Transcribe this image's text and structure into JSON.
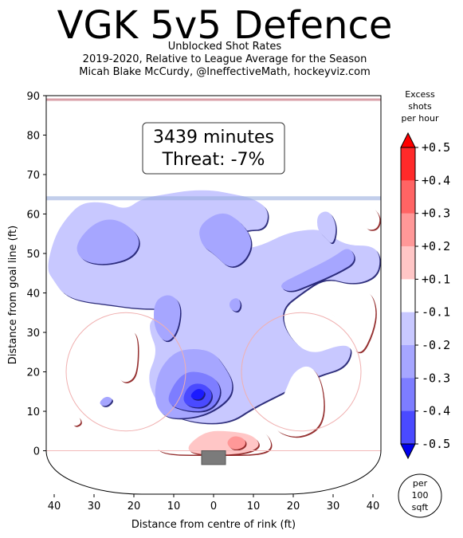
{
  "chart_data": {
    "type": "heatmap",
    "title": "VGK 5v5 Defence",
    "subtitle_lines": [
      "Unblocked Shot Rates",
      "2019-2020, Relative to League Average for the Season",
      "Micah Blake McCurdy, @IneffectiveMath, hockeyviz.com"
    ],
    "xlabel": "Distance from centre of rink (ft)",
    "ylabel": "Distance from goal line (ft)",
    "xlim": [
      -42,
      42
    ],
    "ylim": [
      -11,
      90
    ],
    "x_ticks": [
      -40,
      -30,
      -20,
      -10,
      0,
      10,
      20,
      30,
      40
    ],
    "x_tick_labels": [
      "40",
      "30",
      "20",
      "10",
      "0",
      "10",
      "20",
      "30",
      "40"
    ],
    "y_ticks": [
      0,
      10,
      20,
      30,
      40,
      50,
      60,
      70,
      80,
      90
    ],
    "y_tick_labels": [
      "0",
      "10",
      "20",
      "30",
      "40",
      "50",
      "60",
      "70",
      "80",
      "90"
    ],
    "annotation_lines": [
      "3439 minutes",
      "Threat: -7%"
    ],
    "colorbar": {
      "title_lines": [
        "Excess",
        "shots",
        "per hour"
      ],
      "levels": [
        -0.5,
        -0.4,
        -0.3,
        -0.2,
        -0.1,
        0.1,
        0.2,
        0.3,
        0.4,
        0.5
      ],
      "tick_labels": [
        "-0.5",
        "-0.4",
        "-0.3",
        "-0.2",
        "-0.1",
        "+0.1",
        "+0.2",
        "+0.3",
        "+0.4",
        "+0.5"
      ],
      "colors": [
        "#1b1bff",
        "#4a4aff",
        "#7d7dff",
        "#a6a6ff",
        "#c8c8ff",
        "#ffffff",
        "#ffc6c6",
        "#ff9898",
        "#ff6464",
        "#ff2a2a"
      ],
      "under_color": "#0000ee",
      "over_color": "#ff0000"
    },
    "unit_badge_lines": [
      "per",
      "100",
      "sqft"
    ],
    "regions": [
      {
        "level": -0.1,
        "label": "large defensive zone region",
        "points": [
          [
            -42,
            46
          ],
          [
            -40,
            54
          ],
          [
            -37,
            59
          ],
          [
            -33,
            63
          ],
          [
            -27,
            63
          ],
          [
            -22,
            61
          ],
          [
            -18,
            64
          ],
          [
            -12,
            65
          ],
          [
            -6,
            66
          ],
          [
            0,
            66
          ],
          [
            5,
            65
          ],
          [
            10,
            64
          ],
          [
            14,
            61
          ],
          [
            13,
            56
          ],
          [
            8,
            56
          ],
          [
            5,
            54
          ],
          [
            7,
            51
          ],
          [
            12,
            52
          ],
          [
            18,
            55
          ],
          [
            23,
            56
          ],
          [
            27,
            56
          ],
          [
            30,
            54
          ],
          [
            34,
            52
          ],
          [
            40,
            52
          ],
          [
            42,
            49
          ],
          [
            41,
            44
          ],
          [
            35,
            42
          ],
          [
            28,
            44
          ],
          [
            22,
            40
          ],
          [
            17,
            36
          ],
          [
            18,
            30
          ],
          [
            24,
            24
          ],
          [
            32,
            27
          ],
          [
            35,
            26
          ],
          [
            33,
            21
          ],
          [
            26,
            19
          ],
          [
            18,
            15
          ],
          [
            10,
            11
          ],
          [
            4,
            7
          ],
          [
            -5,
            7
          ],
          [
            -13,
            10
          ],
          [
            -17,
            18
          ],
          [
            -14,
            25
          ],
          [
            -16,
            30
          ],
          [
            -16,
            33
          ],
          [
            -12,
            36
          ],
          [
            -19,
            36
          ],
          [
            -26,
            37
          ],
          [
            -34,
            38
          ],
          [
            -38,
            40
          ],
          [
            -40,
            43
          ]
        ]
      },
      {
        "level": -0.1,
        "label": "right edge region",
        "points": [
          [
            26,
            60
          ],
          [
            29,
            61
          ],
          [
            31,
            57
          ],
          [
            30,
            52
          ],
          [
            28,
            54
          ],
          [
            26,
            56
          ]
        ]
      },
      {
        "level": -0.2,
        "label": "left upper",
        "points": [
          [
            -35,
            52
          ],
          [
            -30,
            58
          ],
          [
            -24,
            59
          ],
          [
            -18,
            54
          ],
          [
            -20,
            49
          ],
          [
            -27,
            47
          ],
          [
            -33,
            48
          ]
        ]
      },
      {
        "level": -0.2,
        "label": "centre mid",
        "points": [
          [
            -4,
            57
          ],
          [
            2,
            61
          ],
          [
            7,
            58
          ],
          [
            10,
            53
          ],
          [
            8,
            48
          ],
          [
            4,
            46
          ],
          [
            0,
            50
          ],
          [
            -3,
            52
          ]
        ]
      },
      {
        "level": -0.2,
        "label": "right upper",
        "points": [
          [
            16,
            42
          ],
          [
            22,
            45
          ],
          [
            30,
            49
          ],
          [
            34,
            52
          ],
          [
            36,
            48
          ],
          [
            31,
            45
          ],
          [
            24,
            42
          ],
          [
            19,
            40
          ]
        ]
      },
      {
        "level": -0.2,
        "label": "slot left",
        "points": [
          [
            -15,
            38
          ],
          [
            -11,
            40
          ],
          [
            -8,
            37
          ],
          [
            -9,
            30
          ],
          [
            -12,
            27
          ],
          [
            -15,
            31
          ]
        ]
      },
      {
        "level": -0.2,
        "label": "small dot",
        "points": [
          [
            4,
            38
          ],
          [
            6,
            39
          ],
          [
            7,
            37
          ],
          [
            6,
            35
          ],
          [
            4,
            36
          ]
        ]
      },
      {
        "level": -0.2,
        "label": "low slot",
        "points": [
          [
            -15,
            13
          ],
          [
            -14,
            20
          ],
          [
            -10,
            25
          ],
          [
            -5,
            26
          ],
          [
            0,
            25
          ],
          [
            3,
            21
          ],
          [
            5,
            17
          ],
          [
            4,
            13
          ],
          [
            -2,
            9
          ],
          [
            -9,
            8
          ],
          [
            -13,
            9
          ]
        ]
      },
      {
        "level": -0.2,
        "label": "left circle dot",
        "points": [
          [
            -29,
            12
          ],
          [
            -27,
            14
          ],
          [
            -25,
            13
          ],
          [
            -27,
            11
          ]
        ]
      },
      {
        "level": -0.3,
        "label": "low slot core",
        "points": [
          [
            -12,
            12
          ],
          [
            -10,
            17
          ],
          [
            -7,
            20
          ],
          [
            -3,
            20
          ],
          [
            1,
            18
          ],
          [
            2,
            14
          ],
          [
            -1,
            10
          ],
          [
            -7,
            10
          ]
        ]
      },
      {
        "level": -0.4,
        "label": "low slot deep",
        "points": [
          [
            -8,
            13
          ],
          [
            -6,
            17
          ],
          [
            -2,
            17
          ],
          [
            0,
            14
          ],
          [
            -2,
            11
          ],
          [
            -6,
            11
          ]
        ]
      },
      {
        "level": -0.5,
        "label": "low slot peak",
        "points": [
          [
            -6,
            14
          ],
          [
            -4,
            16
          ],
          [
            -2,
            15
          ],
          [
            -3,
            13
          ],
          [
            -5,
            13
          ]
        ]
      },
      {
        "level": 0.1,
        "label": "crease band",
        "points": [
          [
            -14,
            4
          ],
          [
            -9,
            6
          ],
          [
            0,
            6
          ],
          [
            8,
            6
          ],
          [
            13,
            5
          ],
          [
            15,
            1
          ],
          [
            12,
            -1
          ],
          [
            0,
            -1
          ],
          [
            -12,
            -1
          ],
          [
            -15,
            1
          ]
        ]
      },
      {
        "level": 0.1,
        "label": "right circle",
        "points": [
          [
            14,
            6
          ],
          [
            18,
            15
          ],
          [
            20,
            20
          ],
          [
            24,
            22
          ],
          [
            27,
            18
          ],
          [
            28,
            10
          ],
          [
            26,
            5
          ],
          [
            20,
            3
          ]
        ]
      },
      {
        "level": 0.1,
        "label": "right point",
        "points": [
          [
            28,
            37
          ],
          [
            33,
            40
          ],
          [
            39,
            41
          ],
          [
            41,
            36
          ],
          [
            40,
            30
          ],
          [
            37,
            24
          ],
          [
            34,
            27
          ],
          [
            31,
            33
          ]
        ]
      },
      {
        "level": 0.1,
        "label": "left circle",
        "points": [
          [
            -25,
            21
          ],
          [
            -23,
            26
          ],
          [
            -21,
            31
          ],
          [
            -19,
            29
          ],
          [
            -19,
            22
          ],
          [
            -20,
            18
          ],
          [
            -23,
            17
          ]
        ]
      },
      {
        "level": 0.1,
        "label": "far right top",
        "points": [
          [
            37,
            61
          ],
          [
            40,
            62
          ],
          [
            42,
            59
          ],
          [
            41,
            56
          ],
          [
            38,
            56
          ]
        ]
      },
      {
        "level": 0.1,
        "label": "left low dot",
        "points": [
          [
            -36,
            8
          ],
          [
            -34,
            9
          ],
          [
            -33,
            7
          ],
          [
            -35,
            6
          ]
        ]
      },
      {
        "level": 0.2,
        "label": "crease core",
        "points": [
          [
            -7,
            1
          ],
          [
            -2,
            5
          ],
          [
            4,
            5
          ],
          [
            10,
            4
          ],
          [
            12,
            1
          ],
          [
            7,
            -1
          ],
          [
            -5,
            -1
          ]
        ]
      },
      {
        "level": 0.3,
        "label": "crease peak",
        "points": [
          [
            3,
            2
          ],
          [
            5,
            4
          ],
          [
            8,
            3
          ],
          [
            8,
            1
          ],
          [
            5,
            0
          ]
        ]
      }
    ]
  }
}
